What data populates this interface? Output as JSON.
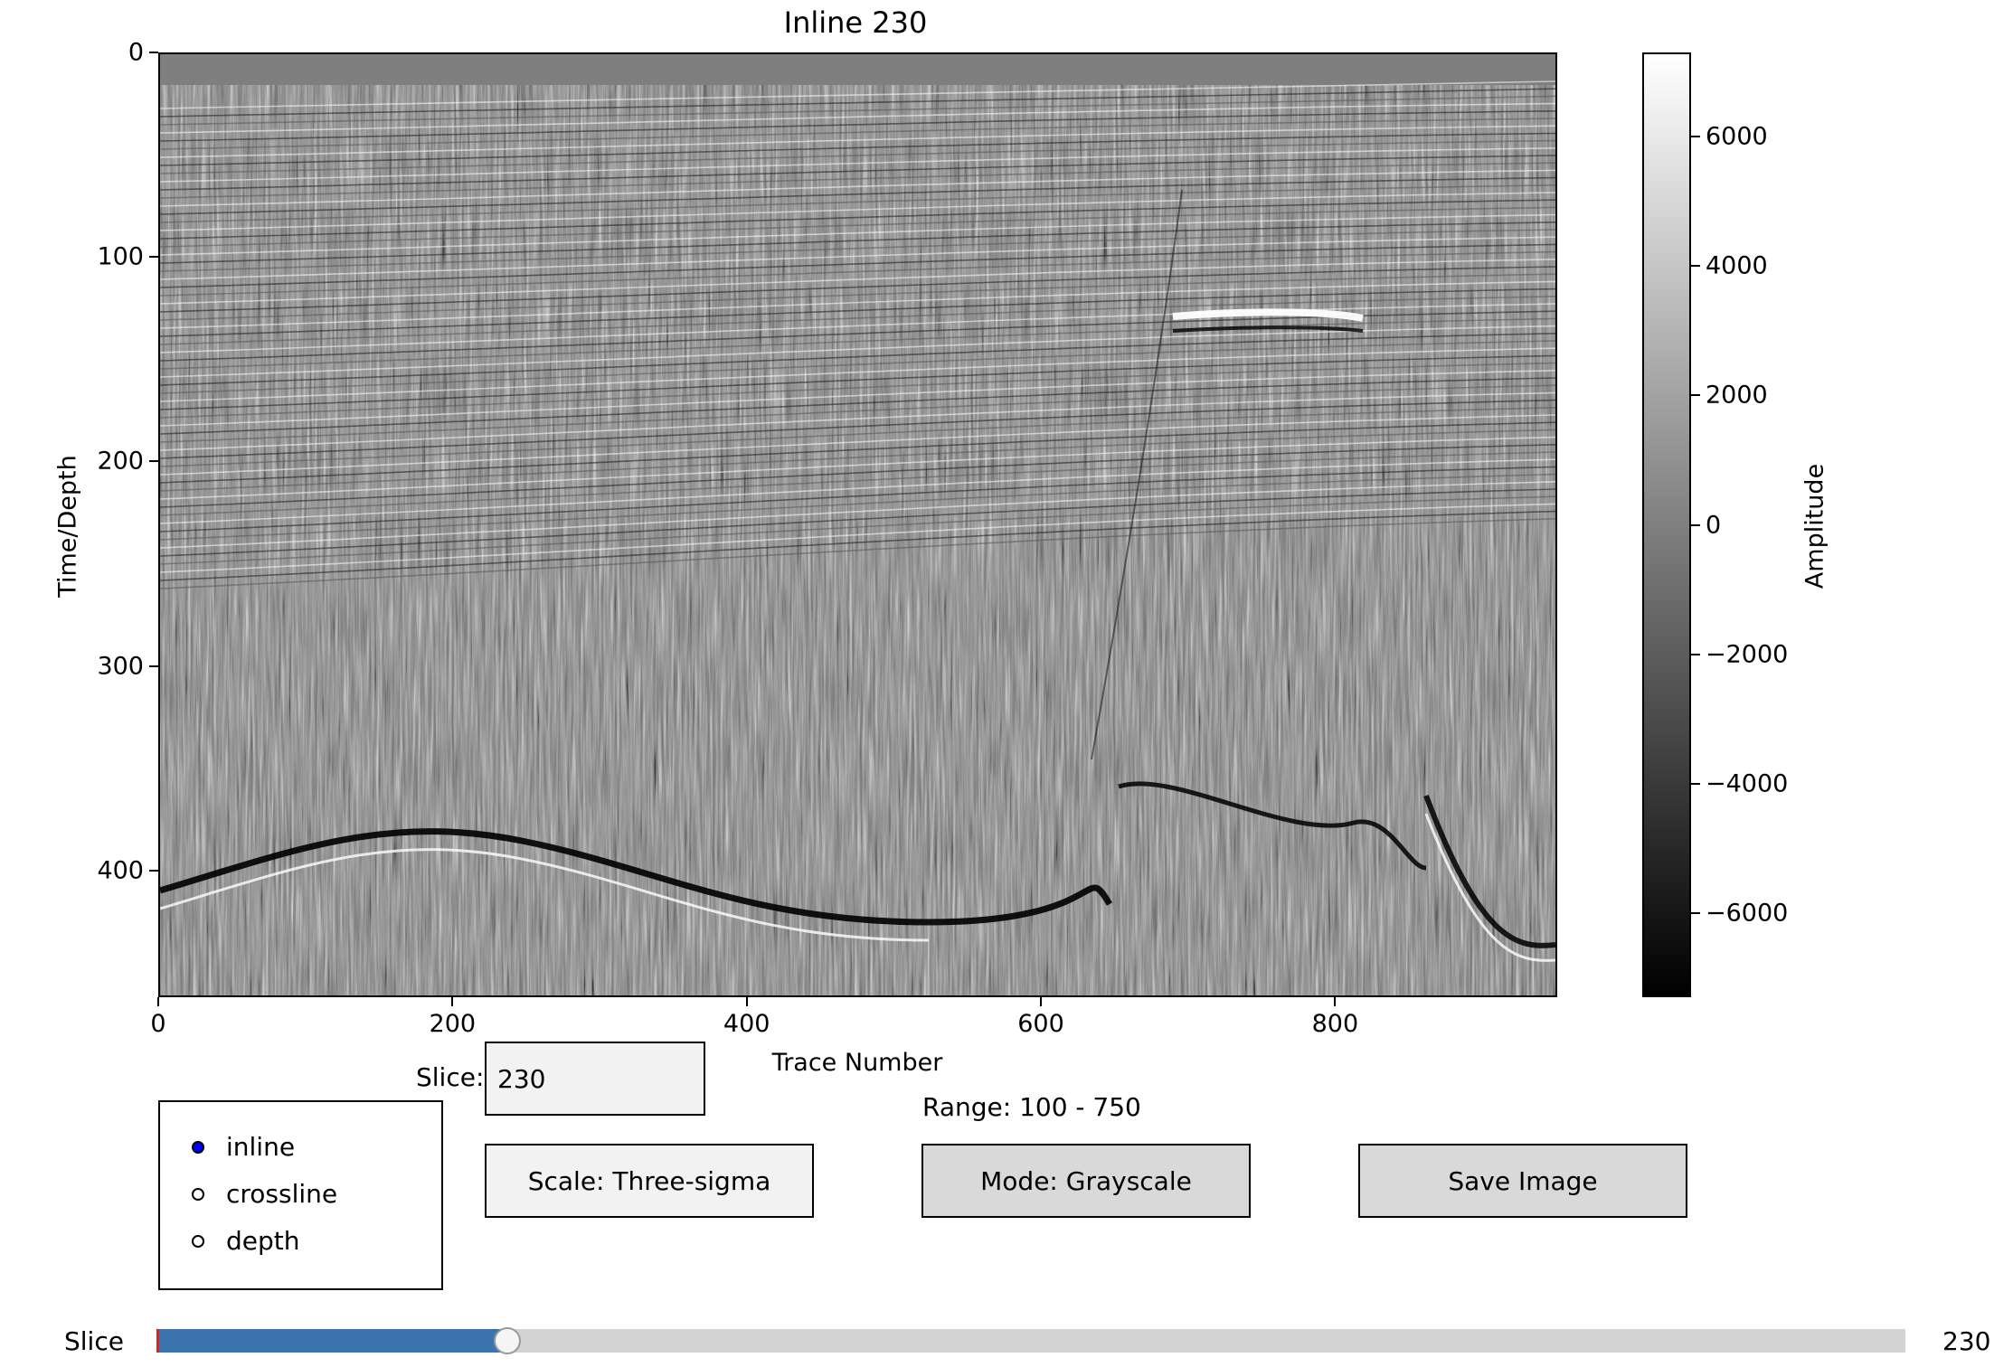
{
  "window": {
    "title": "Inline 230"
  },
  "plot": {
    "xlabel": "Trace Number",
    "ylabel": "Time/Depth",
    "x_ticks": [
      "0",
      "200",
      "400",
      "600",
      "800"
    ],
    "x_tick_values": [
      0,
      200,
      400,
      600,
      800
    ],
    "x_range": [
      0,
      951
    ],
    "y_ticks": [
      "0",
      "100",
      "200",
      "300",
      "400"
    ],
    "y_tick_values": [
      0,
      100,
      200,
      300,
      400
    ],
    "y_range": [
      0,
      462
    ],
    "colormap": "gray",
    "image": "seismic amplitude section"
  },
  "colorbar": {
    "label": "Amplitude",
    "ticks": [
      "6000",
      "4000",
      "2000",
      "0",
      "−2000",
      "−4000",
      "−6000"
    ],
    "tick_values": [
      6000,
      4000,
      2000,
      0,
      -2000,
      -4000,
      -6000
    ],
    "range": [
      -7300,
      7300
    ]
  },
  "controls": {
    "slice_label": "Slice:",
    "slice_value": "230",
    "range_text": "Range: 100 - 750",
    "scale_button": "Scale: Three-sigma",
    "mode_button": "Mode: Grayscale",
    "save_button": "Save Image",
    "radio_options": [
      {
        "label": "inline",
        "selected": true
      },
      {
        "label": "crossline",
        "selected": false
      },
      {
        "label": "depth",
        "selected": false
      }
    ],
    "radio_selected_color": "#0000ff"
  },
  "slider": {
    "label": "Slice",
    "min": 100,
    "max": 750,
    "value": 230,
    "value_text": "230",
    "fill_color": "#3b75af",
    "track_color": "#d3d3d3"
  }
}
